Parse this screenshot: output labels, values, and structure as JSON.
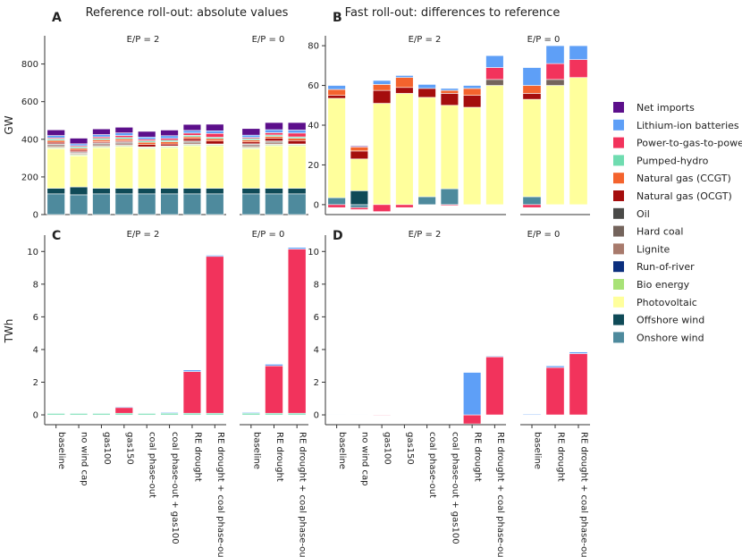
{
  "figure": {
    "panel_titles": {
      "left": "Reference roll-out: absolute values",
      "right": "Fast roll-out: differences to reference"
    },
    "panel_letters": [
      "A",
      "B",
      "C",
      "D"
    ],
    "subplot_titles": {
      "ep2": "E/P = 2",
      "ep0": "E/P = 0"
    },
    "ylabels": {
      "top": "GW",
      "bottom": "TWh"
    }
  },
  "legend": {
    "items": [
      {
        "name": "Net imports",
        "color": "#5c0f8b"
      },
      {
        "name": "Lithium-ion batteries",
        "color": "#5e9ff7"
      },
      {
        "name": "Power-to-gas-to-power",
        "color": "#f2335c"
      },
      {
        "name": "Pumped-hydro",
        "color": "#6fdcb0"
      },
      {
        "name": "Natural gas (CCGT)",
        "color": "#f4632d"
      },
      {
        "name": "Natural gas (OCGT)",
        "color": "#a50d0d"
      },
      {
        "name": "Oil",
        "color": "#4a4a48"
      },
      {
        "name": "Hard coal",
        "color": "#74645c"
      },
      {
        "name": "Lignite",
        "color": "#a87a6c"
      },
      {
        "name": "Run-of-river",
        "color": "#0b2f7e"
      },
      {
        "name": "Bio energy",
        "color": "#a8e277"
      },
      {
        "name": "Photovoltaic",
        "color": "#ffff9c"
      },
      {
        "name": "Offshore wind",
        "color": "#0f4a57"
      },
      {
        "name": "Onshore wind",
        "color": "#4e8a9d"
      }
    ]
  },
  "chart_data": [
    {
      "id": "A",
      "type": "bar",
      "stacked": true,
      "title": "Reference roll-out: absolute values",
      "ylabel": "GW",
      "ylim": [
        0,
        950
      ],
      "yticks": [
        0,
        200,
        400,
        600,
        800
      ],
      "groups": [
        {
          "subtitle": "E/P = 2",
          "categories": [
            "baseline",
            "no wind cap",
            "gas100",
            "gas150",
            "coal phase-out",
            "coal phase-out + gas100",
            "RE drought",
            "RE drought + coal phase-out"
          ],
          "series": [
            {
              "name": "Onshore wind",
              "values": [
                110,
                105,
                110,
                110,
                110,
                110,
                110,
                110
              ]
            },
            {
              "name": "Offshore wind",
              "values": [
                30,
                42,
                30,
                30,
                30,
                30,
                30,
                30
              ]
            },
            {
              "name": "Photovoltaic",
              "values": [
                210,
                165,
                215,
                220,
                210,
                215,
                225,
                225
              ]
            },
            {
              "name": "Bio energy",
              "values": [
                5,
                5,
                5,
                5,
                5,
                5,
                5,
                5
              ]
            },
            {
              "name": "Run-of-river",
              "values": [
                3,
                3,
                3,
                3,
                3,
                3,
                3,
                3
              ]
            },
            {
              "name": "Lignite",
              "values": [
                8,
                6,
                8,
                8,
                0,
                0,
                8,
                0
              ]
            },
            {
              "name": "Hard coal",
              "values": [
                8,
                6,
                8,
                8,
                0,
                0,
                8,
                0
              ]
            },
            {
              "name": "Oil",
              "values": [
                2,
                2,
                2,
                2,
                2,
                2,
                2,
                2
              ]
            },
            {
              "name": "Natural gas (OCGT)",
              "values": [
                8,
                8,
                6,
                6,
                12,
                10,
                12,
                16
              ]
            },
            {
              "name": "Natural gas (CCGT)",
              "values": [
                10,
                10,
                10,
                10,
                12,
                12,
                10,
                12
              ]
            },
            {
              "name": "Pumped-hydro",
              "values": [
                8,
                8,
                8,
                8,
                8,
                8,
                8,
                8
              ]
            },
            {
              "name": "Power-to-gas-to-power",
              "values": [
                6,
                6,
                8,
                10,
                8,
                10,
                12,
                20
              ]
            },
            {
              "name": "Lithium-ion batteries",
              "values": [
                12,
                10,
                12,
                14,
                12,
                14,
                14,
                14
              ]
            },
            {
              "name": "Net imports",
              "values": [
                30,
                30,
                30,
                30,
                30,
                30,
                32,
                35
              ]
            }
          ]
        },
        {
          "subtitle": "E/P = 0",
          "categories": [
            "baseline",
            "RE drought",
            "RE drought + coal phase-out"
          ],
          "series": [
            {
              "name": "Onshore wind",
              "values": [
                110,
                110,
                110
              ]
            },
            {
              "name": "Offshore wind",
              "values": [
                30,
                30,
                30
              ]
            },
            {
              "name": "Photovoltaic",
              "values": [
                210,
                225,
                225
              ]
            },
            {
              "name": "Bio energy",
              "values": [
                5,
                5,
                5
              ]
            },
            {
              "name": "Run-of-river",
              "values": [
                3,
                3,
                3
              ]
            },
            {
              "name": "Lignite",
              "values": [
                8,
                8,
                0
              ]
            },
            {
              "name": "Hard coal",
              "values": [
                8,
                8,
                0
              ]
            },
            {
              "name": "Oil",
              "values": [
                2,
                2,
                2
              ]
            },
            {
              "name": "Natural gas (OCGT)",
              "values": [
                10,
                14,
                18
              ]
            },
            {
              "name": "Natural gas (CCGT)",
              "values": [
                10,
                10,
                12
              ]
            },
            {
              "name": "Pumped-hydro",
              "values": [
                8,
                8,
                8
              ]
            },
            {
              "name": "Power-to-gas-to-power",
              "values": [
                6,
                12,
                20
              ]
            },
            {
              "name": "Lithium-ion batteries",
              "values": [
                12,
                16,
                16
              ]
            },
            {
              "name": "Net imports",
              "values": [
                35,
                38,
                40
              ]
            }
          ]
        }
      ]
    },
    {
      "id": "B",
      "type": "bar",
      "stacked": true,
      "title": "Fast roll-out: differences to reference",
      "ylabel": "GW",
      "ylim": [
        -5,
        85
      ],
      "yticks": [
        0,
        20,
        40,
        60,
        80
      ],
      "groups": [
        {
          "subtitle": "E/P = 2",
          "categories": [
            "baseline",
            "no wind cap",
            "gas100",
            "gas150",
            "coal phase-out",
            "coal phase-out + gas100",
            "RE drought",
            "RE drought + coal phase-out"
          ],
          "series": [
            {
              "name": "Onshore wind",
              "values": [
                3.5,
                -1.5,
                0,
                0,
                4,
                8,
                0,
                0
              ]
            },
            {
              "name": "Offshore wind",
              "values": [
                0,
                7,
                0,
                0,
                0,
                0,
                0,
                0
              ]
            },
            {
              "name": "Photovoltaic",
              "values": [
                50,
                16,
                51,
                56,
                50,
                42,
                49,
                60
              ]
            },
            {
              "name": "Hard coal",
              "values": [
                0,
                0,
                0,
                0,
                0,
                0,
                0,
                3
              ]
            },
            {
              "name": "Natural gas (OCGT)",
              "values": [
                1.5,
                4,
                6.5,
                3,
                4.5,
                6,
                6,
                0
              ]
            },
            {
              "name": "Natural gas (CCGT)",
              "values": [
                3,
                2,
                3,
                5,
                0,
                1.5,
                3.5,
                0
              ]
            },
            {
              "name": "Power-to-gas-to-power",
              "values": [
                -1.5,
                -1,
                -3.5,
                -1.5,
                0,
                -0.5,
                0,
                6
              ]
            },
            {
              "name": "Lithium-ion batteries",
              "values": [
                2,
                0,
                2,
                1,
                2,
                1,
                1.5,
                6
              ]
            },
            {
              "name": "Net imports",
              "values": [
                0,
                0.5,
                0,
                0,
                0,
                0,
                0,
                0
              ]
            }
          ]
        },
        {
          "subtitle": "E/P = 0",
          "categories": [
            "baseline",
            "RE drought",
            "RE drought + coal phase-out"
          ],
          "series": [
            {
              "name": "Onshore wind",
              "values": [
                4,
                0,
                0
              ]
            },
            {
              "name": "Photovoltaic",
              "values": [
                49,
                60,
                64
              ]
            },
            {
              "name": "Hard coal",
              "values": [
                0,
                3,
                0
              ]
            },
            {
              "name": "Natural gas (OCGT)",
              "values": [
                3,
                0,
                0
              ]
            },
            {
              "name": "Natural gas (CCGT)",
              "values": [
                4,
                0,
                0
              ]
            },
            {
              "name": "Power-to-gas-to-power",
              "values": [
                -1.5,
                8,
                9
              ]
            },
            {
              "name": "Lithium-ion batteries",
              "values": [
                9,
                9,
                7
              ]
            }
          ]
        }
      ]
    },
    {
      "id": "C",
      "type": "bar",
      "stacked": true,
      "ylabel": "TWh",
      "ylim": [
        -0.6,
        11
      ],
      "yticks": [
        0,
        2,
        4,
        6,
        8,
        10
      ],
      "groups": [
        {
          "subtitle": "E/P = 2",
          "categories": [
            "baseline",
            "no wind cap",
            "gas100",
            "gas150",
            "coal phase-out",
            "coal phase-out + gas100",
            "RE drought",
            "RE drought + coal phase-out"
          ],
          "series": [
            {
              "name": "Pumped-hydro",
              "values": [
                0.1,
                0.1,
                0.1,
                0.1,
                0.1,
                0.1,
                0.1,
                0.1
              ]
            },
            {
              "name": "Power-to-gas-to-power",
              "values": [
                0,
                0,
                0,
                0.35,
                0,
                0,
                2.55,
                9.6
              ]
            },
            {
              "name": "Lithium-ion batteries",
              "values": [
                0.02,
                0.02,
                0.02,
                0.05,
                0.02,
                0.05,
                0.1,
                0.07
              ]
            }
          ]
        },
        {
          "subtitle": "E/P = 0",
          "categories": [
            "baseline",
            "RE drought",
            "RE drought + coal phase-out"
          ],
          "series": [
            {
              "name": "Pumped-hydro",
              "values": [
                0.1,
                0.1,
                0.1
              ]
            },
            {
              "name": "Power-to-gas-to-power",
              "values": [
                0,
                2.9,
                10.05
              ]
            },
            {
              "name": "Lithium-ion batteries",
              "values": [
                0.05,
                0.1,
                0.1
              ]
            }
          ]
        }
      ]
    },
    {
      "id": "D",
      "type": "bar",
      "stacked": true,
      "ylabel": "TWh",
      "ylim": [
        -0.6,
        11
      ],
      "yticks": [
        0,
        2,
        4,
        6,
        8,
        10
      ],
      "groups": [
        {
          "subtitle": "E/P = 2",
          "categories": [
            "baseline",
            "no wind cap",
            "gas100",
            "gas150",
            "coal phase-out",
            "coal phase-out + gas100",
            "RE drought",
            "RE drought + coal phase-out"
          ],
          "series": [
            {
              "name": "Pumped-hydro",
              "values": [
                0,
                0,
                0,
                0,
                0,
                0,
                0,
                0
              ]
            },
            {
              "name": "Power-to-gas-to-power",
              "values": [
                0,
                0,
                -0.05,
                0.02,
                0,
                0,
                -0.55,
                3.55
              ]
            },
            {
              "name": "Lithium-ion batteries",
              "values": [
                0.01,
                0.01,
                0.02,
                0.02,
                0.02,
                0,
                2.6,
                0.05
              ]
            }
          ]
        },
        {
          "subtitle": "E/P = 0",
          "categories": [
            "baseline",
            "RE drought",
            "RE drought + coal phase-out"
          ],
          "series": [
            {
              "name": "Pumped-hydro",
              "values": [
                0,
                0,
                0
              ]
            },
            {
              "name": "Power-to-gas-to-power",
              "values": [
                0,
                2.9,
                3.75
              ]
            },
            {
              "name": "Lithium-ion batteries",
              "values": [
                0.05,
                0.1,
                0.1
              ]
            }
          ]
        }
      ]
    }
  ]
}
